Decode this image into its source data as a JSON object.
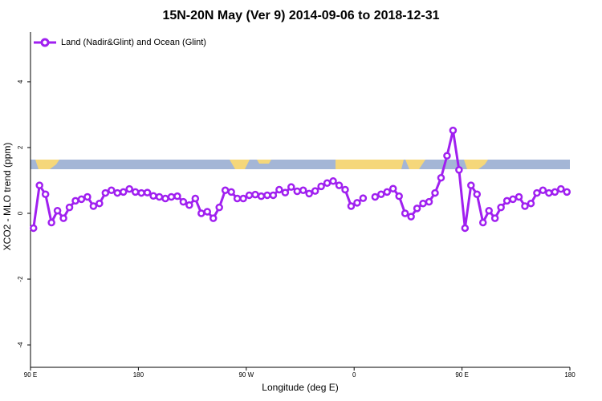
{
  "chart_data": {
    "type": "line",
    "title": "15N-20N May (Ver 9)   2014-09-06 to 2018-12-31",
    "x_label": "Longitude (deg E)",
    "y_label": "XCO2 - MLO trend (ppm)",
    "xlim": [
      90,
      540
    ],
    "ylim": [
      -4.73,
      5.51
    ],
    "xticks": [
      {
        "value": 90,
        "label": "90 E"
      },
      180,
      {
        "value": 270,
        "label": "90 W"
      },
      {
        "value": 360,
        "label": "0"
      },
      {
        "value": 450,
        "label": "90 E"
      },
      {
        "value": 540,
        "label": "180"
      }
    ],
    "yticks": [
      -4,
      -2,
      0,
      2,
      4
    ],
    "legend": "top-left",
    "x": [
      92.5,
      97.5,
      102.5,
      107.5,
      112.5,
      117.5,
      122.5,
      127.5,
      132.5,
      137.5,
      142.5,
      147.5,
      152.5,
      157.5,
      162.5,
      167.5,
      172.5,
      177.5,
      182.5,
      187.5,
      192.5,
      197.5,
      202.5,
      207.5,
      212.5,
      217.5,
      222.5,
      227.5,
      232.5,
      237.5,
      242.5,
      247.5,
      252.5,
      257.5,
      262.5,
      267.5,
      272.5,
      277.5,
      282.5,
      287.5,
      292.5,
      297.5,
      302.5,
      307.5,
      312.5,
      317.5,
      322.5,
      327.5,
      332.5,
      337.5,
      342.5,
      347.5,
      352.5,
      357.5,
      362.5,
      367.5,
      372.5,
      377.5,
      382.5,
      387.5,
      392.5,
      397.5,
      402.5,
      407.5,
      412.5,
      417.5,
      422.5,
      427.5,
      432.5,
      437.5,
      442.5,
      447.5,
      452.5,
      457.5,
      462.5,
      467.5,
      472.5,
      477.5,
      482.5,
      487.5,
      492.5,
      497.5,
      502.5,
      507.5,
      512.5,
      517.5,
      522.5,
      527.5,
      532.5,
      537.5
    ],
    "series": [
      {
        "name": "Land (Nadir&Glint) and Ocean (Glint)",
        "color": "#a020f0",
        "values": [
          -0.45,
          0.85,
          0.58,
          -0.28,
          0.08,
          -0.15,
          0.18,
          0.38,
          0.43,
          0.5,
          0.22,
          0.3,
          0.62,
          0.7,
          0.62,
          0.65,
          0.74,
          0.65,
          0.62,
          0.63,
          0.53,
          0.5,
          0.45,
          0.5,
          0.52,
          0.35,
          0.25,
          0.45,
          0.0,
          0.05,
          -0.15,
          0.18,
          0.7,
          0.65,
          0.45,
          0.45,
          0.55,
          0.57,
          0.52,
          0.55,
          0.55,
          0.72,
          0.63,
          0.8,
          0.67,
          0.7,
          0.6,
          0.68,
          0.82,
          0.92,
          0.98,
          0.85,
          0.72,
          0.22,
          0.32,
          0.46,
          null,
          0.5,
          0.58,
          0.65,
          0.75,
          0.52,
          0.0,
          -0.1,
          0.15,
          0.3,
          0.35,
          0.62,
          1.08,
          1.75,
          2.52,
          1.32,
          -0.45,
          0.85,
          0.58,
          -0.28,
          0.08,
          -0.15,
          0.18,
          0.38,
          0.43,
          0.5,
          0.22,
          0.3,
          0.62,
          0.7,
          0.62,
          0.65,
          0.74,
          0.65
        ]
      }
    ]
  }
}
